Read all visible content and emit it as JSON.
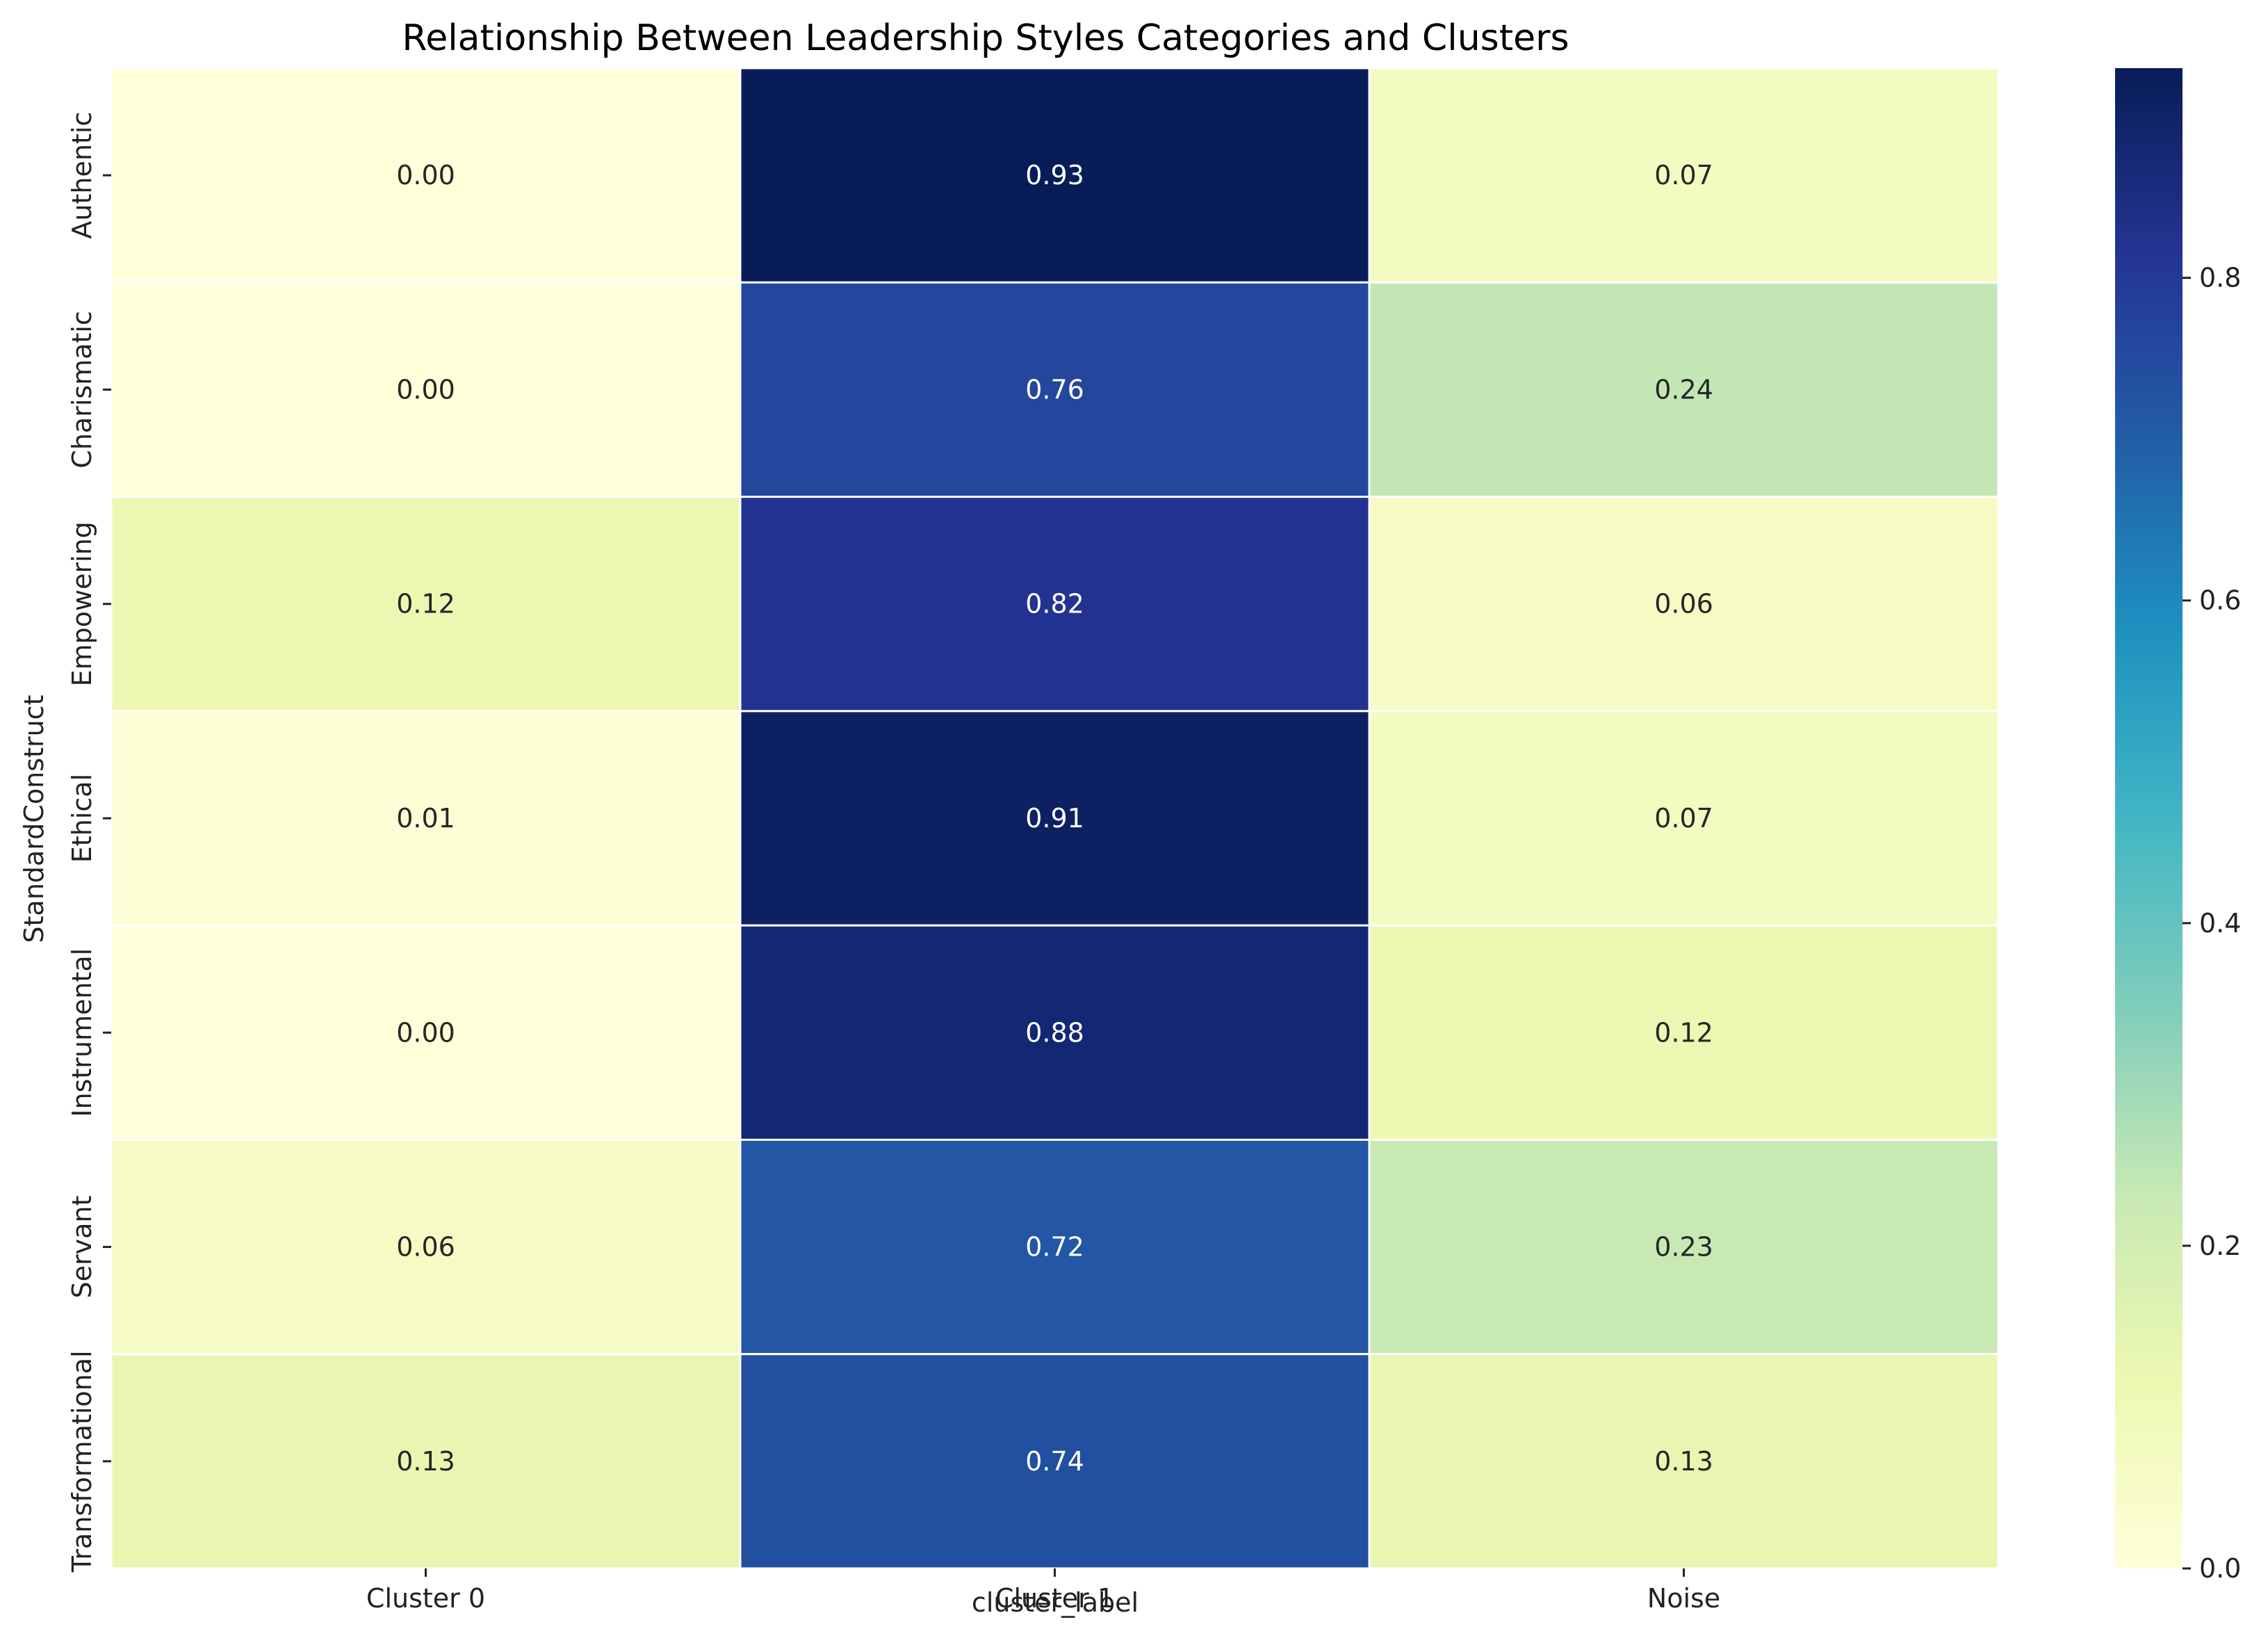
{
  "chart_data": {
    "type": "heatmap",
    "title": "Relationship Between Leadership Styles Categories and Clusters",
    "xlabel": "cluster_label",
    "ylabel": "StandardConstruct",
    "x_categories": [
      "Cluster 0",
      "Cluster 1",
      "Noise"
    ],
    "y_categories": [
      "Authentic",
      "Charismatic",
      "Empowering",
      "Ethical",
      "Instrumental",
      "Servant",
      "Transformational"
    ],
    "values": [
      [
        0.0,
        0.93,
        0.07
      ],
      [
        0.0,
        0.76,
        0.24
      ],
      [
        0.12,
        0.82,
        0.06
      ],
      [
        0.01,
        0.91,
        0.07
      ],
      [
        0.0,
        0.88,
        0.12
      ],
      [
        0.06,
        0.72,
        0.23
      ],
      [
        0.13,
        0.74,
        0.13
      ]
    ],
    "value_labels": [
      [
        "0.00",
        "0.93",
        "0.07"
      ],
      [
        "0.00",
        "0.76",
        "0.24"
      ],
      [
        "0.12",
        "0.82",
        "0.06"
      ],
      [
        "0.01",
        "0.91",
        "0.07"
      ],
      [
        "0.00",
        "0.88",
        "0.12"
      ],
      [
        "0.06",
        "0.72",
        "0.23"
      ],
      [
        "0.13",
        "0.74",
        "0.13"
      ]
    ],
    "colormap": "YlGnBu",
    "colorbar": {
      "range": [
        0.0,
        0.93
      ],
      "ticks": [
        0.0,
        0.2,
        0.4,
        0.6,
        0.8
      ],
      "tick_labels": [
        "0.0",
        "0.2",
        "0.4",
        "0.6",
        "0.8"
      ]
    }
  }
}
